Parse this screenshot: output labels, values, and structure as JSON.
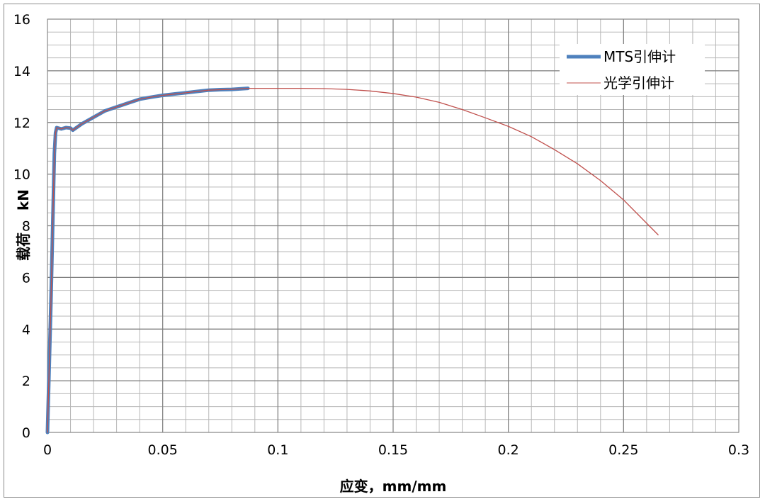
{
  "chart_data": {
    "type": "line",
    "title": "",
    "xlabel": "应变，mm/mm",
    "ylabel_parts": [
      "载荷",
      "kN"
    ],
    "xlim": [
      0,
      0.3
    ],
    "ylim": [
      0,
      16
    ],
    "x_ticks": [
      0,
      0.05,
      0.1,
      0.15,
      0.2,
      0.25,
      0.3
    ],
    "x_tick_labels": [
      "0",
      "0.05",
      "0.1",
      "0.15",
      "0.2",
      "0.25",
      "0.3"
    ],
    "y_ticks": [
      0,
      2,
      4,
      6,
      8,
      10,
      12,
      14,
      16
    ],
    "y_tick_labels": [
      "0",
      "2",
      "4",
      "6",
      "8",
      "10",
      "12",
      "14",
      "16"
    ],
    "x_minor_step": 0.01,
    "y_minor_step": 0.5,
    "grid": true,
    "legend_position": "top-right",
    "series": [
      {
        "name": "MTS引伸计",
        "color": "#4f81bd",
        "x": [
          0,
          0.0015,
          0.003,
          0.0035,
          0.004,
          0.006,
          0.008,
          0.01,
          0.011,
          0.015,
          0.02,
          0.025,
          0.03,
          0.035,
          0.04,
          0.045,
          0.05,
          0.055,
          0.06,
          0.065,
          0.07,
          0.075,
          0.08,
          0.087
        ],
        "y": [
          0,
          5.0,
          10.8,
          11.6,
          11.8,
          11.75,
          11.8,
          11.78,
          11.7,
          11.95,
          12.2,
          12.45,
          12.6,
          12.75,
          12.9,
          12.98,
          13.05,
          13.1,
          13.15,
          13.2,
          13.25,
          13.27,
          13.28,
          13.32
        ]
      },
      {
        "name": "光学引伸计",
        "color": "#c0504d",
        "x": [
          0,
          0.0015,
          0.003,
          0.0035,
          0.004,
          0.006,
          0.008,
          0.01,
          0.011,
          0.015,
          0.02,
          0.025,
          0.03,
          0.035,
          0.04,
          0.045,
          0.05,
          0.055,
          0.06,
          0.065,
          0.07,
          0.075,
          0.08,
          0.087,
          0.1,
          0.11,
          0.12,
          0.13,
          0.14,
          0.15,
          0.16,
          0.17,
          0.18,
          0.19,
          0.2,
          0.21,
          0.22,
          0.23,
          0.24,
          0.25,
          0.26,
          0.265
        ],
        "y": [
          0,
          5.0,
          10.8,
          11.6,
          11.8,
          11.75,
          11.8,
          11.78,
          11.7,
          11.95,
          12.2,
          12.45,
          12.6,
          12.75,
          12.9,
          12.98,
          13.05,
          13.1,
          13.15,
          13.2,
          13.25,
          13.27,
          13.28,
          13.32,
          13.32,
          13.32,
          13.31,
          13.28,
          13.22,
          13.12,
          12.98,
          12.78,
          12.5,
          12.18,
          11.85,
          11.45,
          10.95,
          10.4,
          9.75,
          9.0,
          8.1,
          7.65
        ]
      }
    ]
  }
}
